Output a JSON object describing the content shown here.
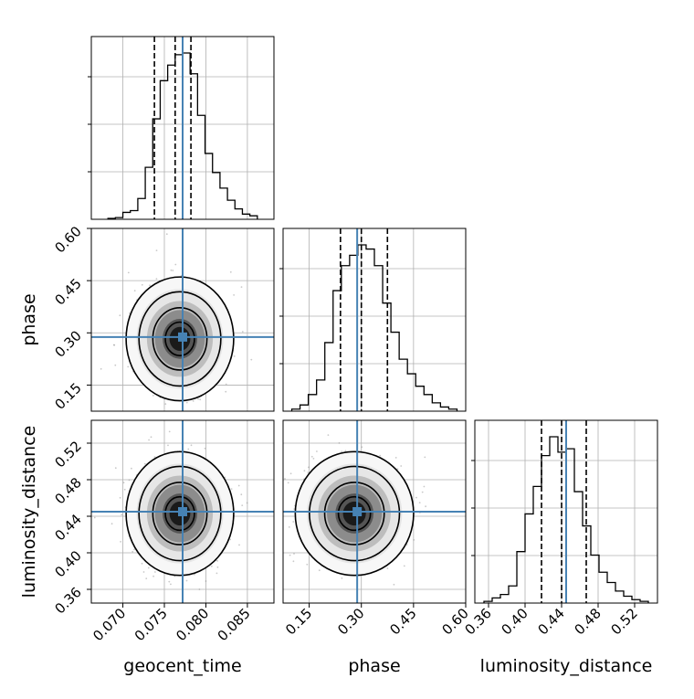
{
  "chart_data": {
    "type": "corner",
    "parameters": [
      "geocent_time",
      "phase",
      "luminosity_distance"
    ],
    "truths": {
      "geocent_time": 0.0772,
      "phase": 0.288,
      "luminosity_distance": 0.445
    },
    "quantiles": {
      "geocent_time": [
        0.0738,
        0.0763,
        0.0782
      ],
      "phase": [
        0.24,
        0.3,
        0.375
      ],
      "luminosity_distance": [
        0.418,
        0.44,
        0.467
      ]
    },
    "ranges": {
      "geocent_time": [
        0.0662,
        0.0882
      ],
      "phase": [
        0.075,
        0.6
      ],
      "luminosity_distance": [
        0.345,
        0.545
      ]
    },
    "ticks": {
      "geocent_time": {
        "values": [
          0.07,
          0.075,
          0.08,
          0.085
        ],
        "labels": [
          "0.070",
          "0.075",
          "0.080",
          "0.085"
        ]
      },
      "phase": {
        "values": [
          0.15,
          0.3,
          0.45,
          0.6
        ],
        "labels": [
          "0.15",
          "0.30",
          "0.45",
          "0.60"
        ]
      },
      "luminosity_distance": {
        "values": [
          0.36,
          0.4,
          0.44,
          0.48,
          0.52
        ],
        "labels": [
          "0.36",
          "0.40",
          "0.44",
          "0.48",
          "0.52"
        ]
      }
    },
    "histograms": {
      "geocent_time": [
        0.5,
        1,
        4,
        5,
        12,
        30,
        58,
        80,
        89,
        95,
        96,
        84,
        60,
        38,
        27,
        18,
        11,
        6,
        3,
        2
      ],
      "phase": [
        1,
        3,
        8,
        15,
        33,
        58,
        70,
        75,
        80,
        78,
        70,
        52,
        38,
        25,
        18,
        12,
        8,
        4,
        2,
        1
      ],
      "luminosity_distance": [
        1,
        3,
        5,
        10,
        30,
        52,
        68,
        86,
        97,
        88,
        90,
        65,
        45,
        28,
        18,
        12,
        7,
        4,
        2,
        1
      ]
    },
    "grid": true
  }
}
